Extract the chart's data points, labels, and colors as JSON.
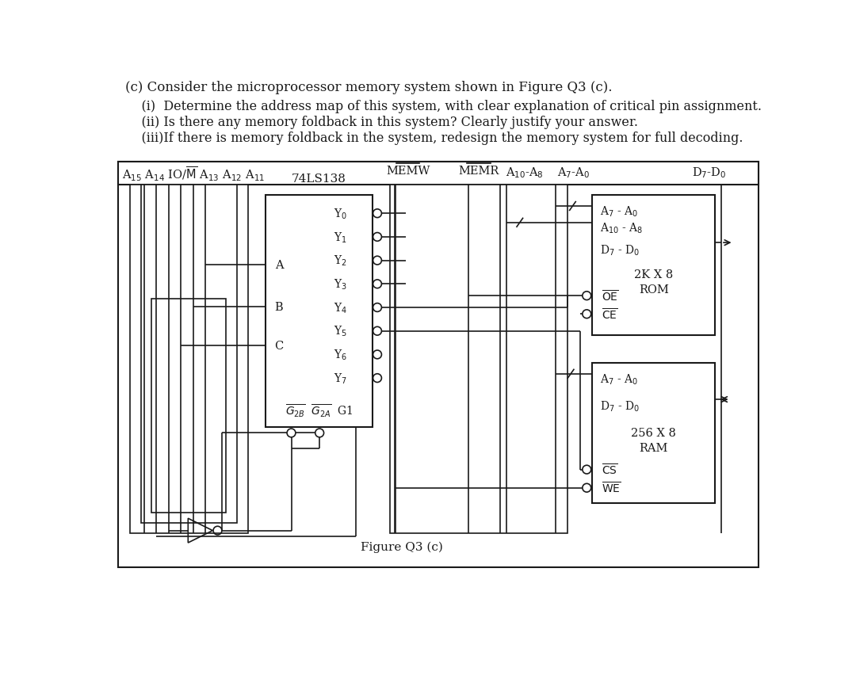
{
  "bg_color": "#ffffff",
  "text_color": "#1a1a1a",
  "title_line1": "(c) Consider the microprocessor memory system shown in Figure Q3 (c).",
  "title_line2": "    (i)  Determine the address map of this system, with clear explanation of critical pin assignment.",
  "title_line3": "    (ii) Is there any memory foldback in this system? Clearly justify your answer.",
  "title_line4": "    (iii)If there is memory foldback in the system, redesign the memory system for full decoding.",
  "ic_label": "74LS138",
  "figure_caption": "Figure Q3 (c)"
}
